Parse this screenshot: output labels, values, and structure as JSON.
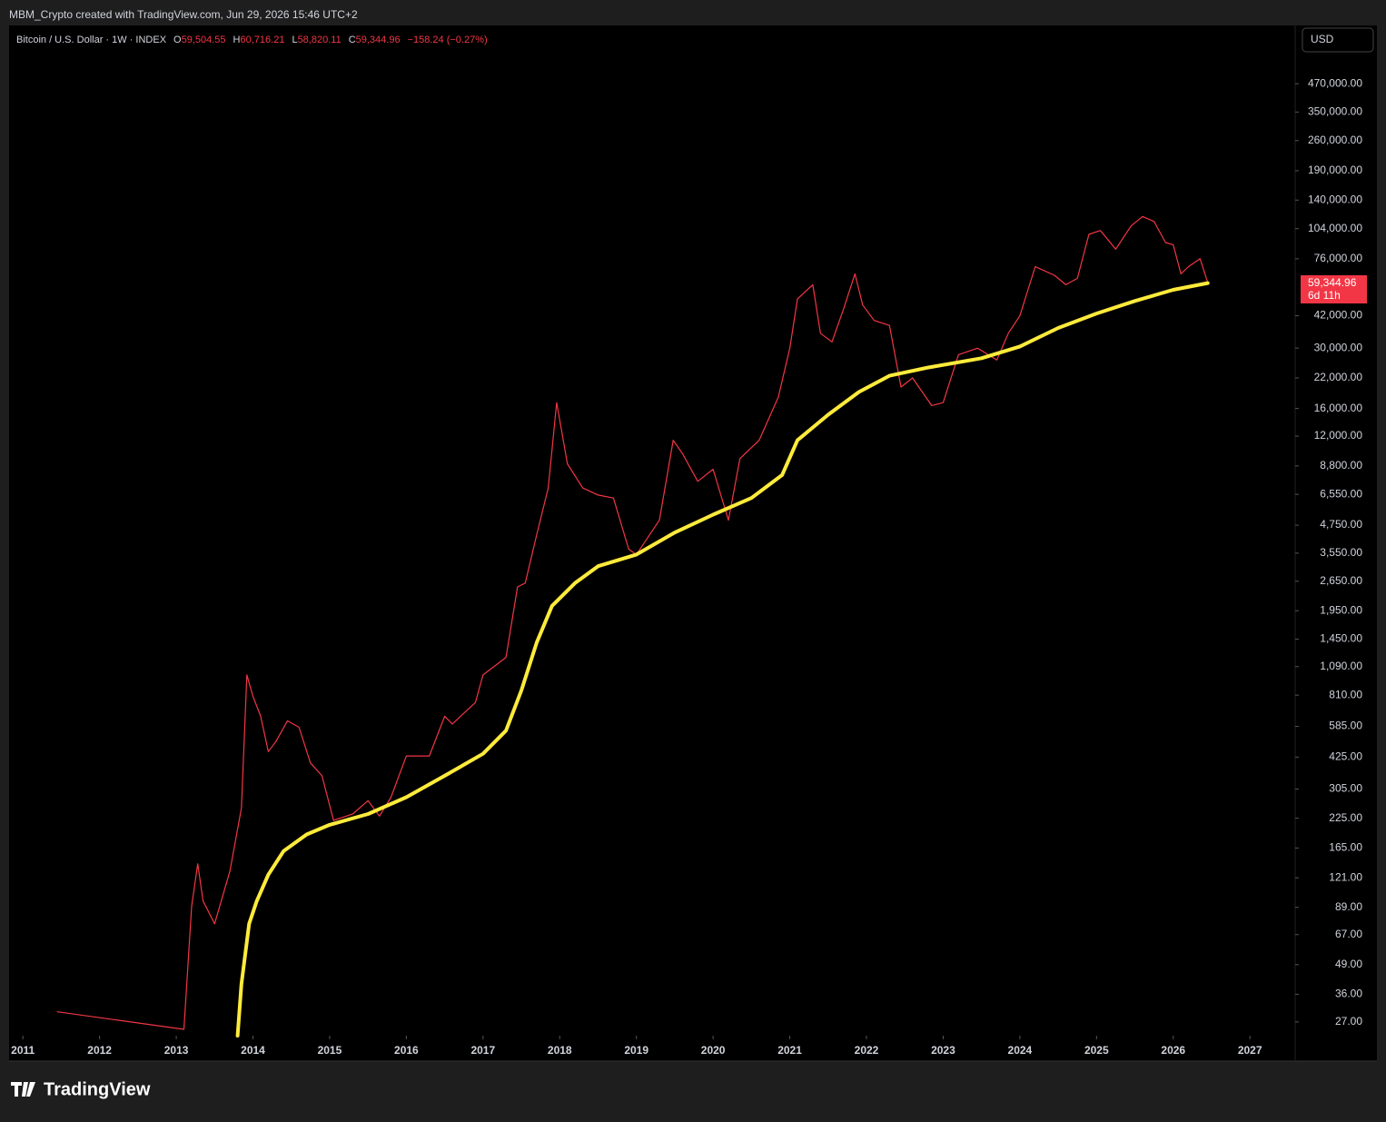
{
  "header": {
    "attribution": "MBM_Crypto created with TradingView.com, Jun 29, 2026 15:46 UTC+2",
    "symbol": "Bitcoin / U.S. Dollar · 1W · INDEX",
    "ohlc": [
      {
        "label": "O",
        "value": "59,504.55"
      },
      {
        "label": "H",
        "value": "60,716.21"
      },
      {
        "label": "L",
        "value": "58,820.11"
      },
      {
        "label": "C",
        "value": "59,344.96"
      }
    ],
    "change": "−158.24 (−0.27%)",
    "currency": "USD",
    "last_price": "59,344.96",
    "countdown": "6d 11h",
    "brand": "TradingView"
  },
  "chart_data": {
    "type": "line",
    "log_scale": true,
    "grid": false,
    "xlim": [
      2010.82,
      2027.59
    ],
    "ylim": [
      23.4,
      862000
    ],
    "xticks": [
      2011,
      2012,
      2013,
      2014,
      2015,
      2016,
      2017,
      2018,
      2019,
      2020,
      2021,
      2022,
      2023,
      2024,
      2025,
      2026,
      2027
    ],
    "yticks": [
      {
        "value": 470000,
        "label": "470,000.00"
      },
      {
        "value": 350000,
        "label": "350,000.00"
      },
      {
        "value": 260000,
        "label": "260,000.00"
      },
      {
        "value": 190000,
        "label": "190,000.00"
      },
      {
        "value": 140000,
        "label": "140,000.00"
      },
      {
        "value": 104000,
        "label": "104,000.00"
      },
      {
        "value": 76000,
        "label": "76,000.00"
      },
      {
        "value": 42000,
        "label": "42,000.00"
      },
      {
        "value": 30000,
        "label": "30,000.00"
      },
      {
        "value": 22000,
        "label": "22,000.00"
      },
      {
        "value": 16000,
        "label": "16,000.00"
      },
      {
        "value": 12000,
        "label": "12,000.00"
      },
      {
        "value": 8800,
        "label": "8,800.00"
      },
      {
        "value": 6550,
        "label": "6,550.00"
      },
      {
        "value": 4750,
        "label": "4,750.00"
      },
      {
        "value": 3550,
        "label": "3,550.00"
      },
      {
        "value": 2650,
        "label": "2,650.00"
      },
      {
        "value": 1950,
        "label": "1,950.00"
      },
      {
        "value": 1450,
        "label": "1,450.00"
      },
      {
        "value": 1090,
        "label": "1,090.00"
      },
      {
        "value": 810,
        "label": "810.00"
      },
      {
        "value": 585,
        "label": "585.00"
      },
      {
        "value": 425,
        "label": "425.00"
      },
      {
        "value": 305,
        "label": "305.00"
      },
      {
        "value": 225,
        "label": "225.00"
      },
      {
        "value": 165,
        "label": "165.00"
      },
      {
        "value": 121,
        "label": "121.00"
      },
      {
        "value": 89,
        "label": "89.00"
      },
      {
        "value": 67,
        "label": "67.00"
      },
      {
        "value": 49,
        "label": "49.00"
      },
      {
        "value": 36,
        "label": "36.00"
      },
      {
        "value": 27,
        "label": "27.00"
      }
    ],
    "series": [
      {
        "color": "#f23645",
        "x": [
          2011.45,
          2013.1,
          2013.2,
          2013.28,
          2013.35,
          2013.5,
          2013.7,
          2013.85,
          2013.92,
          2014.0,
          2014.1,
          2014.2,
          2014.3,
          2014.45,
          2014.6,
          2014.75,
          2014.9,
          2015.05,
          2015.3,
          2015.5,
          2015.65,
          2015.8,
          2016.0,
          2016.3,
          2016.5,
          2016.6,
          2016.9,
          2017.0,
          2017.3,
          2017.45,
          2017.55,
          2017.7,
          2017.85,
          2017.96,
          2018.1,
          2018.3,
          2018.5,
          2018.7,
          2018.9,
          2019.0,
          2019.3,
          2019.48,
          2019.6,
          2019.8,
          2020.0,
          2020.2,
          2020.35,
          2020.6,
          2020.85,
          2021.0,
          2021.1,
          2021.3,
          2021.4,
          2021.55,
          2021.7,
          2021.85,
          2021.95,
          2022.1,
          2022.3,
          2022.45,
          2022.6,
          2022.85,
          2023.0,
          2023.2,
          2023.45,
          2023.7,
          2023.85,
          2024.0,
          2024.2,
          2024.45,
          2024.6,
          2024.75,
          2024.9,
          2025.05,
          2025.25,
          2025.45,
          2025.6,
          2025.75,
          2025.9,
          2026.0,
          2026.1,
          2026.2,
          2026.35,
          2026.45
        ],
        "values": [
          30,
          25,
          90,
          140,
          95,
          75,
          130,
          250,
          1000,
          800,
          650,
          450,
          500,
          620,
          580,
          400,
          350,
          220,
          235,
          270,
          230,
          280,
          430,
          430,
          650,
          600,
          750,
          1000,
          1200,
          2500,
          2600,
          4300,
          7000,
          17000,
          9000,
          7000,
          6500,
          6300,
          3700,
          3500,
          5000,
          11500,
          10000,
          7500,
          8500,
          5000,
          9500,
          11500,
          18000,
          30000,
          50000,
          58000,
          35000,
          32000,
          45000,
          65000,
          47000,
          40000,
          38000,
          20000,
          22000,
          16500,
          17000,
          28000,
          30000,
          26500,
          35000,
          42000,
          70000,
          64000,
          58000,
          62000,
          98000,
          102000,
          84000,
          107000,
          118000,
          112000,
          90000,
          88000,
          65000,
          70000,
          76000,
          59345
        ]
      },
      {
        "color": "#ffeb3b",
        "x": [
          2013.8,
          2013.85,
          2013.95,
          2014.05,
          2014.2,
          2014.4,
          2014.7,
          2015.0,
          2015.5,
          2016.0,
          2016.5,
          2017.0,
          2017.3,
          2017.5,
          2017.7,
          2017.9,
          2018.2,
          2018.5,
          2019.0,
          2019.5,
          2020.0,
          2020.5,
          2020.9,
          2021.1,
          2021.5,
          2021.9,
          2022.3,
          2022.8,
          2023.5,
          2024.0,
          2024.5,
          2025.0,
          2025.5,
          2026.0,
          2026.45
        ],
        "values": [
          23.4,
          40,
          75,
          95,
          125,
          160,
          190,
          210,
          235,
          280,
          350,
          440,
          560,
          850,
          1400,
          2050,
          2600,
          3100,
          3500,
          4400,
          5300,
          6300,
          8000,
          11500,
          15000,
          19000,
          22500,
          24500,
          27000,
          30500,
          37000,
          43000,
          49000,
          55000,
          59000
        ]
      }
    ]
  }
}
